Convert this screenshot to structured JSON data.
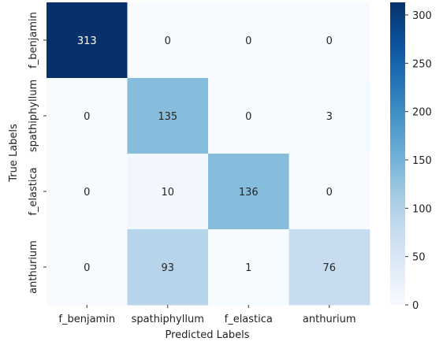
{
  "chart_data": {
    "type": "heatmap",
    "xlabel": "Predicted Labels",
    "ylabel": "True Labels",
    "x_categories": [
      "f_benjamin",
      "spathiphyllum",
      "f_elastica",
      "anthurium"
    ],
    "y_categories": [
      "f_benjamin",
      "spathiphyllum",
      "f_elastica",
      "anthurium"
    ],
    "values": [
      [
        313,
        0,
        0,
        0
      ],
      [
        0,
        135,
        0,
        3
      ],
      [
        0,
        10,
        136,
        0
      ],
      [
        0,
        93,
        1,
        76
      ]
    ],
    "colorbar": {
      "min": 0,
      "max": 313,
      "ticks": [
        0,
        50,
        100,
        150,
        200,
        250,
        300
      ],
      "colormap": "Blues"
    }
  },
  "colors": {
    "low": "#f7fbff",
    "high": "#08306b"
  }
}
